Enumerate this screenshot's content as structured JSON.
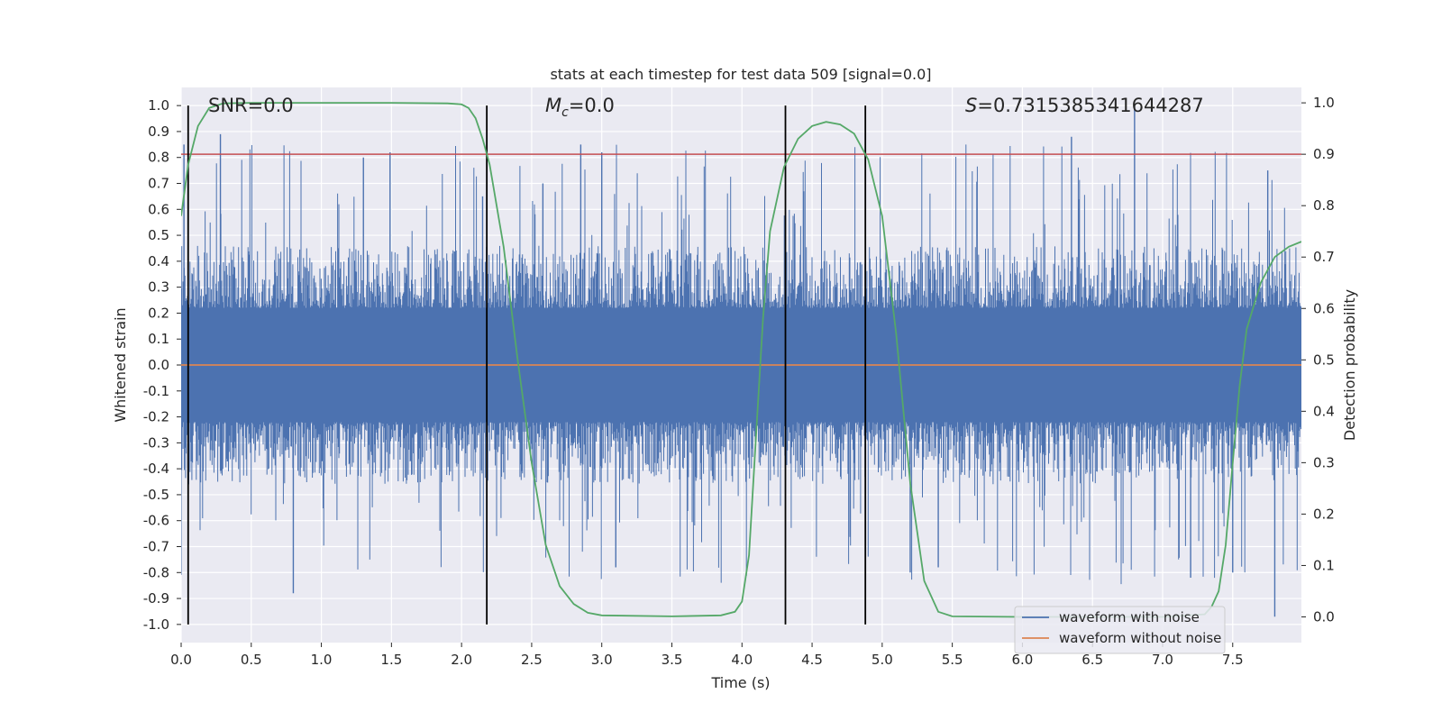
{
  "chart_data": {
    "type": "line",
    "title": "stats at each timestep for test data 509 [signal=0.0]",
    "xlabel": "Time (s)",
    "ylabel_left": "Whitened strain",
    "ylabel_right": "Detection probability",
    "xlim": [
      0.0,
      7.99
    ],
    "ylim_left": [
      -1.07,
      1.07
    ],
    "ylim_right": [
      -0.05,
      1.03
    ],
    "x_ticks": [
      "0.0",
      "0.5",
      "1.0",
      "1.5",
      "2.0",
      "2.5",
      "3.0",
      "3.5",
      "4.0",
      "4.5",
      "5.0",
      "5.5",
      "6.0",
      "6.5",
      "7.0",
      "7.5"
    ],
    "y_ticks_left": [
      "-1.0",
      "-0.9",
      "-0.8",
      "-0.7",
      "-0.6",
      "-0.5",
      "-0.4",
      "-0.3",
      "-0.2",
      "-0.1",
      "0.0",
      "0.1",
      "0.2",
      "0.3",
      "0.4",
      "0.5",
      "0.6",
      "0.7",
      "0.8",
      "0.9",
      "1.0"
    ],
    "y_ticks_right": [
      "0.0",
      "0.1",
      "0.2",
      "0.3",
      "0.4",
      "0.5",
      "0.6",
      "0.7",
      "0.8",
      "0.9",
      "1.0"
    ],
    "grid": true,
    "legend_position": "lower-right",
    "colors": {
      "background": "#eaeaf2",
      "noisy": "#4c72b0",
      "clean": "#dd8452",
      "probability": "#55a868",
      "threshold": "#c44e52",
      "marker": "#000000"
    },
    "series": [
      {
        "name": "waveform with noise",
        "type": "noise-band",
        "core_amplitude": 0.4,
        "typical_peak_range": [
          0.5,
          0.85
        ],
        "x": [
          0.02,
          0.28,
          0.8,
          1.3,
          1.49,
          2.15,
          2.58,
          2.85,
          3.0,
          3.1,
          5.2,
          5.4,
          6.35,
          6.8,
          7.2,
          7.5,
          7.75,
          7.8
        ],
        "y": [
          0.85,
          0.89,
          -0.88,
          0.8,
          0.82,
          0.65,
          0.7,
          0.85,
          0.82,
          -0.78,
          -0.8,
          -0.78,
          0.88,
          1.0,
          -0.82,
          -0.8,
          0.75,
          -0.97
        ]
      },
      {
        "name": "waveform without noise",
        "x": [
          0.0,
          7.99
        ],
        "y": [
          0.0,
          0.0
        ]
      },
      {
        "name": "",
        "axis": "right",
        "x": [
          0.0,
          0.05,
          0.12,
          0.2,
          0.3,
          0.5,
          1.0,
          1.5,
          1.9,
          2.0,
          2.05,
          2.1,
          2.15,
          2.2,
          2.3,
          2.4,
          2.5,
          2.6,
          2.7,
          2.8,
          2.9,
          3.0,
          3.5,
          3.85,
          3.95,
          4.0,
          4.05,
          4.1,
          4.15,
          4.2,
          4.3,
          4.4,
          4.5,
          4.6,
          4.7,
          4.8,
          4.9,
          5.0,
          5.1,
          5.2,
          5.3,
          5.4,
          5.5,
          6.0,
          7.0,
          7.3,
          7.35,
          7.4,
          7.45,
          7.5,
          7.55,
          7.6,
          7.7,
          7.8,
          7.9,
          7.99
        ],
        "y": [
          0.78,
          0.88,
          0.955,
          0.99,
          0.999,
          1.0,
          1.0,
          1.0,
          0.999,
          0.997,
          0.99,
          0.97,
          0.93,
          0.88,
          0.72,
          0.5,
          0.3,
          0.14,
          0.06,
          0.025,
          0.008,
          0.003,
          0.001,
          0.003,
          0.01,
          0.03,
          0.12,
          0.35,
          0.58,
          0.75,
          0.875,
          0.93,
          0.955,
          0.963,
          0.958,
          0.94,
          0.89,
          0.78,
          0.55,
          0.26,
          0.07,
          0.01,
          0.001,
          0.0,
          0.0,
          0.005,
          0.02,
          0.05,
          0.14,
          0.3,
          0.45,
          0.56,
          0.65,
          0.7,
          0.72,
          0.73
        ]
      }
    ],
    "threshold": {
      "axis": "right",
      "value": 0.9
    },
    "event_markers": [
      0.05,
      2.18,
      4.31,
      4.88
    ],
    "annotations": {
      "snr": "SNR=0.0",
      "mc_symbol": "M",
      "mc_sub": "c",
      "mc_value": "=0.0",
      "s_symbol": "S",
      "s_value": "=0.7315385341644287"
    }
  }
}
